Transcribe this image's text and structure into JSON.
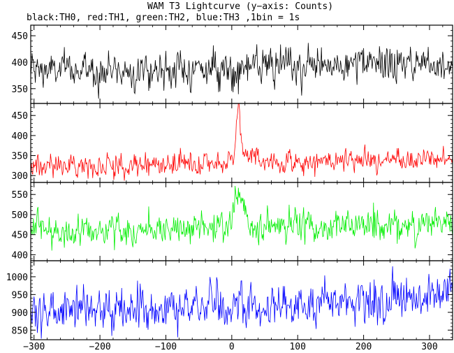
{
  "chart_data": {
    "type": "line",
    "title": "WAM T3 Lightcurve (y−axis: Counts)",
    "subtitle": "black:TH0, red:TH1, green:TH2, blue:TH3 ,1bin = 1s",
    "xlim": [
      -305,
      335
    ],
    "x_ticks": [
      -300,
      -200,
      -100,
      0,
      100,
      200,
      300
    ],
    "x_step": 1,
    "panels": [
      {
        "key": "TH0",
        "color": "#000000",
        "ylim": [
          322,
          470
        ],
        "y_ticks": [
          350,
          400,
          450
        ],
        "series": [
          {
            "values_description_only": false,
            "trend": [
              [
                -305,
                385
              ],
              [
                -150,
                385
              ],
              [
                0,
                388
              ],
              [
                335,
                400
              ]
            ],
            "noise_sd": 17,
            "features": []
          }
        ]
      },
      {
        "key": "TH1",
        "color": "#ff0000",
        "ylim": [
          283,
          480
        ],
        "y_ticks": [
          300,
          350,
          400,
          450
        ],
        "series": [
          {
            "values_description_only": false,
            "trend": [
              [
                -305,
                325
              ],
              [
                -150,
                326
              ],
              [
                0,
                330
              ],
              [
                335,
                343
              ]
            ],
            "noise_sd": 14,
            "features": [
              {
                "center": 10,
                "width": 3,
                "amplitude": 120
              },
              {
                "center": 20,
                "width": 15,
                "amplitude": 25
              }
            ]
          }
        ]
      },
      {
        "key": "TH2",
        "color": "#00ee00",
        "ylim": [
          385,
          580
        ],
        "y_ticks": [
          400,
          450,
          500,
          550
        ],
        "series": [
          {
            "values_description_only": false,
            "trend": [
              [
                -305,
                460
              ],
              [
                -150,
                462
              ],
              [
                0,
                468
              ],
              [
                335,
                478
              ]
            ],
            "noise_sd": 20,
            "features": [
              {
                "center": 10,
                "width": 8,
                "amplitude": 75
              }
            ]
          }
        ]
      },
      {
        "key": "TH3",
        "color": "#0000ff",
        "ylim": [
          823,
          1045
        ],
        "y_ticks": [
          850,
          900,
          950,
          1000
        ],
        "series": [
          {
            "values_description_only": false,
            "trend": [
              [
                -305,
                905
              ],
              [
                -150,
                908
              ],
              [
                0,
                915
              ],
              [
                200,
                930
              ],
              [
                335,
                945
              ]
            ],
            "noise_sd": 30,
            "features": []
          }
        ]
      }
    ]
  }
}
